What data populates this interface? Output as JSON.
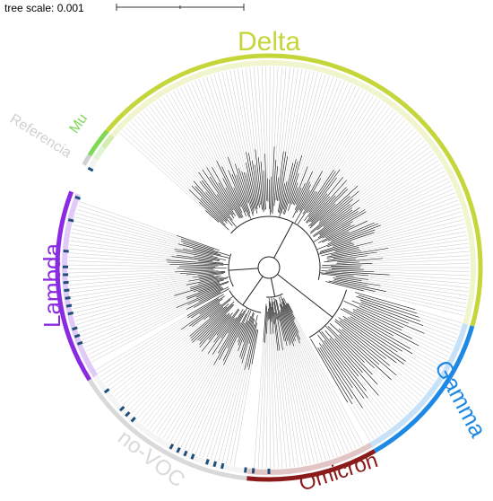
{
  "scale": {
    "label": "tree scale: 0.001"
  },
  "clades": [
    {
      "name": "Delta",
      "color": "#c5d63a"
    },
    {
      "name": "Gamma",
      "color": "#1e88e5"
    },
    {
      "name": "Omicron",
      "color": "#8b1a1a"
    },
    {
      "name": "no-VOC",
      "color": "#d9d9d9"
    },
    {
      "name": "Lambda",
      "color": "#8a2be2"
    },
    {
      "name": "Referencia",
      "color": "#d0d0d0"
    },
    {
      "name": "Mu",
      "color": "#7ed957"
    }
  ]
}
